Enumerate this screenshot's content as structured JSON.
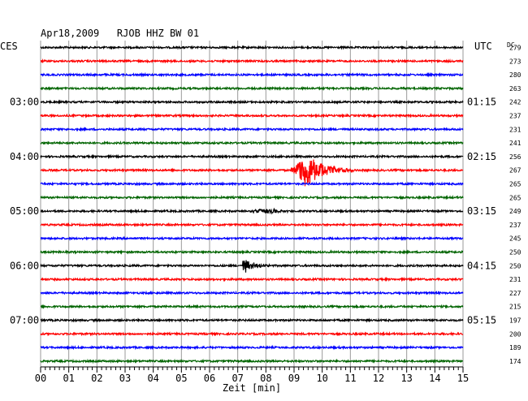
{
  "header": {
    "title": "Apr18,2009   RJOB HHZ BW 01",
    "left_zone": "CES",
    "right_zone": "UTC",
    "dc_label": "DC"
  },
  "chart_data": {
    "type": "line",
    "title": "Apr18,2009   RJOB HHZ BW 01",
    "xlabel": "Zeit [min]",
    "x_ticks": [
      "00",
      "01",
      "02",
      "03",
      "04",
      "05",
      "06",
      "07",
      "08",
      "09",
      "10",
      "11",
      "12",
      "13",
      "14",
      "15"
    ],
    "xlim": [
      0,
      15
    ],
    "trace_colors": [
      "#000000",
      "#ff0000",
      "#0000ff",
      "#006400"
    ],
    "grid": true,
    "left_time_labels": [
      {
        "trace": 4,
        "text": "03:00"
      },
      {
        "trace": 8,
        "text": "04:00"
      },
      {
        "trace": 12,
        "text": "05:00"
      },
      {
        "trace": 16,
        "text": "06:00"
      },
      {
        "trace": 20,
        "text": "07:00"
      }
    ],
    "right_time_labels": [
      {
        "trace": 4,
        "text": "01:15"
      },
      {
        "trace": 8,
        "text": "02:15"
      },
      {
        "trace": 12,
        "text": "03:15"
      },
      {
        "trace": 16,
        "text": "04:15"
      },
      {
        "trace": 20,
        "text": "05:15"
      }
    ],
    "dc_values": [
      "279",
      "273",
      "280",
      "263",
      "242",
      "237",
      "231",
      "241",
      "256",
      "267",
      "265",
      "265",
      "249",
      "237",
      "245",
      "250",
      "250",
      "231",
      "227",
      "215",
      "197",
      "200",
      "189",
      "174"
    ],
    "events": [
      {
        "trace": 9,
        "start_min": 8.85,
        "peak_min": 9.45,
        "end_min": 11.2,
        "amplitude": "large"
      },
      {
        "trace": 12,
        "start_min": 7.0,
        "peak_min": 8.2,
        "end_min": 9.0,
        "amplitude": "small"
      },
      {
        "trace": 16,
        "start_min": 7.15,
        "peak_min": 7.2,
        "end_min": 8.2,
        "amplitude": "medium"
      }
    ]
  }
}
